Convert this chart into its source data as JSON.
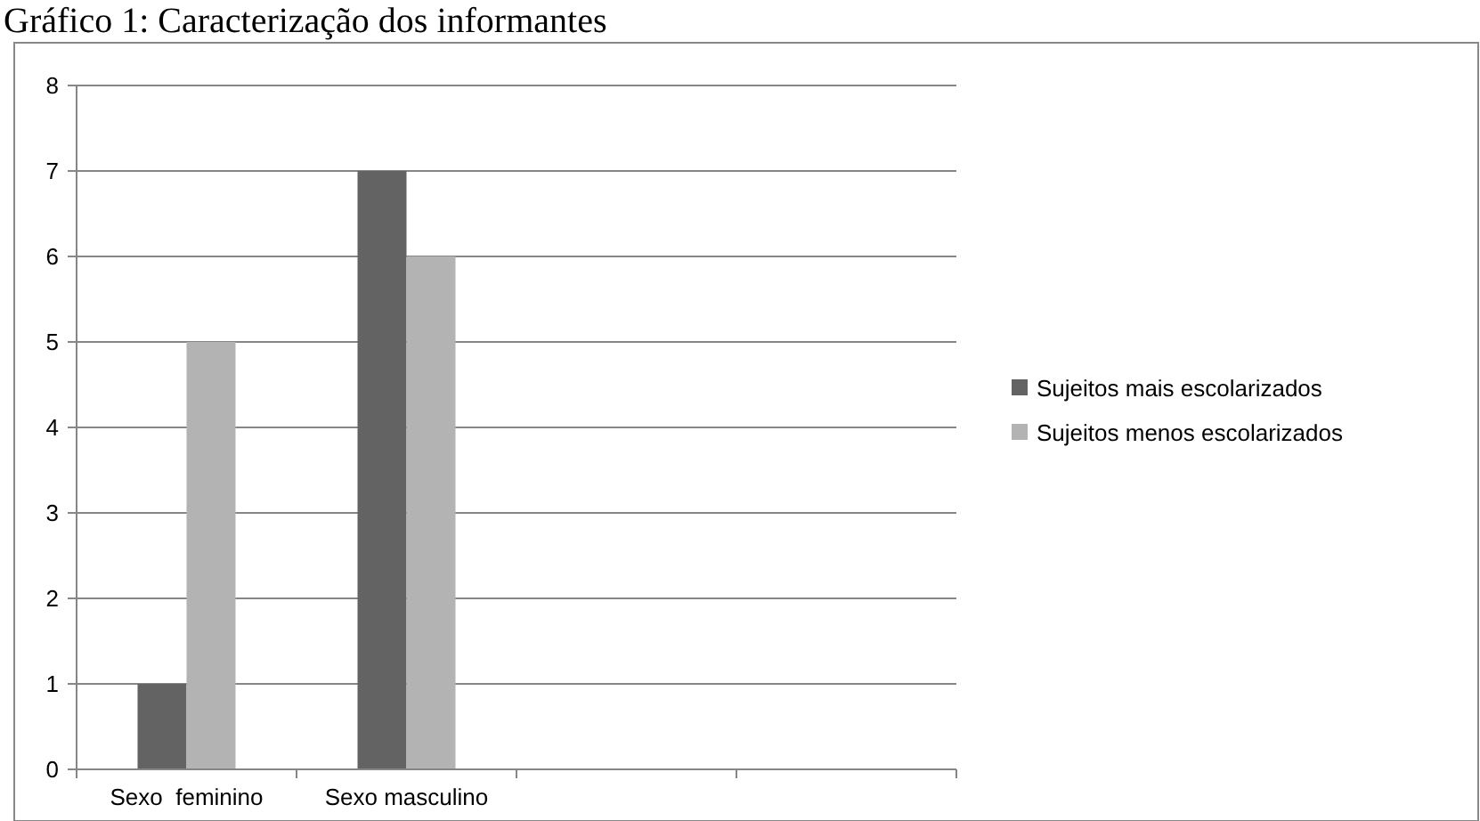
{
  "chart_data": {
    "type": "bar",
    "title": "Gráfico 1: Caracterização dos informantes",
    "categories": [
      "Sexo  feminino",
      "Sexo masculino",
      null,
      null
    ],
    "series": [
      {
        "name": "Sujeitos mais escolarizados",
        "color": "#636363",
        "values": [
          1,
          7,
          null,
          null
        ]
      },
      {
        "name": "Sujeitos menos escolarizados",
        "color": "#b3b3b3",
        "values": [
          5,
          6,
          null,
          null
        ]
      }
    ],
    "ylim": [
      0,
      8
    ],
    "yticks": [
      0,
      1,
      2,
      3,
      4,
      5,
      6,
      7,
      8
    ],
    "grid": "y",
    "legend": "right"
  }
}
